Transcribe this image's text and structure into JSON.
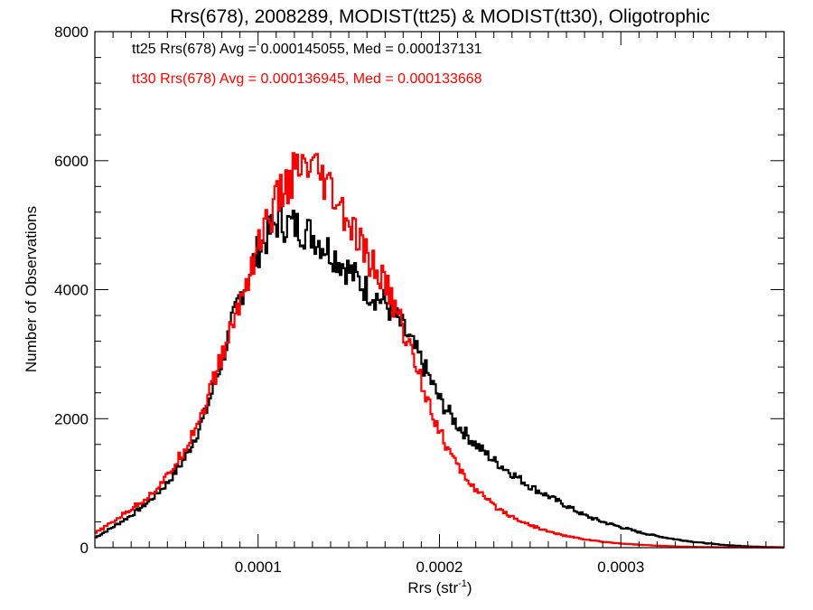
{
  "chart_data": {
    "type": "histogram",
    "title": "Rrs(678), 2008289, MODIST(tt25) & MODIST(tt30), Oligotrophic",
    "xlabel_main": "Rrs (str",
    "xlabel_sup": "-1",
    "xlabel_close": ")",
    "ylabel": "Number of Observations",
    "xlim": [
      1e-05,
      0.00039
    ],
    "ylim": [
      0,
      8000
    ],
    "x_ticks": [
      {
        "value": 0.0001,
        "label": "0.0001"
      },
      {
        "value": 0.0002,
        "label": "0.0002"
      },
      {
        "value": 0.0003,
        "label": "0.0003"
      }
    ],
    "y_ticks": [
      {
        "value": 0,
        "label": "0"
      },
      {
        "value": 2000,
        "label": "2000"
      },
      {
        "value": 4000,
        "label": "4000"
      },
      {
        "value": 6000,
        "label": "6000"
      },
      {
        "value": 8000,
        "label": "8000"
      }
    ],
    "series": [
      {
        "name": "tt25",
        "color": "#000000",
        "annotation": "tt25 Rrs(678) Avg = 0.000145055, Med = 0.000137131",
        "points": [
          [
            1e-05,
            150
          ],
          [
            2e-05,
            320
          ],
          [
            3e-05,
            500
          ],
          [
            4e-05,
            720
          ],
          [
            5e-05,
            1000
          ],
          [
            6e-05,
            1400
          ],
          [
            7e-05,
            2000
          ],
          [
            8e-05,
            2900
          ],
          [
            9e-05,
            3900
          ],
          [
            0.0001,
            4600
          ],
          [
            0.00011,
            5050
          ],
          [
            0.00012,
            5000
          ],
          [
            0.00013,
            4850
          ],
          [
            0.00014,
            4600
          ],
          [
            0.00015,
            4300
          ],
          [
            0.00016,
            4000
          ],
          [
            0.00017,
            3800
          ],
          [
            0.00018,
            3400
          ],
          [
            0.00019,
            2900
          ],
          [
            0.0002,
            2300
          ],
          [
            0.00021,
            1900
          ],
          [
            0.00022,
            1600
          ],
          [
            0.00023,
            1350
          ],
          [
            0.00024,
            1150
          ],
          [
            0.00025,
            950
          ],
          [
            0.00026,
            800
          ],
          [
            0.00027,
            650
          ],
          [
            0.00028,
            500
          ],
          [
            0.00029,
            400
          ],
          [
            0.0003,
            320
          ],
          [
            0.00031,
            240
          ],
          [
            0.00032,
            180
          ],
          [
            0.00033,
            130
          ],
          [
            0.00034,
            90
          ],
          [
            0.00035,
            60
          ],
          [
            0.00036,
            35
          ],
          [
            0.00037,
            20
          ],
          [
            0.00038,
            10
          ],
          [
            0.00039,
            5
          ]
        ]
      },
      {
        "name": "tt30",
        "color": "#ff0000",
        "annotation": "tt30 Rrs(678) Avg = 0.000136945, Med = 0.000133668",
        "points": [
          [
            1e-05,
            220
          ],
          [
            2e-05,
            400
          ],
          [
            3e-05,
            600
          ],
          [
            4e-05,
            800
          ],
          [
            5e-05,
            1100
          ],
          [
            6e-05,
            1550
          ],
          [
            7e-05,
            2150
          ],
          [
            8e-05,
            2950
          ],
          [
            9e-05,
            3800
          ],
          [
            0.0001,
            4700
          ],
          [
            0.00011,
            5350
          ],
          [
            0.00012,
            5800
          ],
          [
            0.00013,
            5850
          ],
          [
            0.00014,
            5500
          ],
          [
            0.00015,
            5000
          ],
          [
            0.00016,
            4500
          ],
          [
            0.00017,
            4100
          ],
          [
            0.00018,
            3400
          ],
          [
            0.00019,
            2600
          ],
          [
            0.0002,
            1800
          ],
          [
            0.00021,
            1250
          ],
          [
            0.00022,
            900
          ],
          [
            0.00023,
            650
          ],
          [
            0.00024,
            480
          ],
          [
            0.00025,
            350
          ],
          [
            0.00026,
            250
          ],
          [
            0.00027,
            180
          ],
          [
            0.00028,
            130
          ],
          [
            0.00029,
            90
          ],
          [
            0.0003,
            65
          ],
          [
            0.00031,
            45
          ],
          [
            0.00032,
            30
          ],
          [
            0.00033,
            20
          ],
          [
            0.00034,
            12
          ],
          [
            0.00035,
            8
          ],
          [
            0.00036,
            5
          ],
          [
            0.00037,
            3
          ],
          [
            0.00038,
            2
          ],
          [
            0.00039,
            1
          ]
        ]
      }
    ]
  }
}
